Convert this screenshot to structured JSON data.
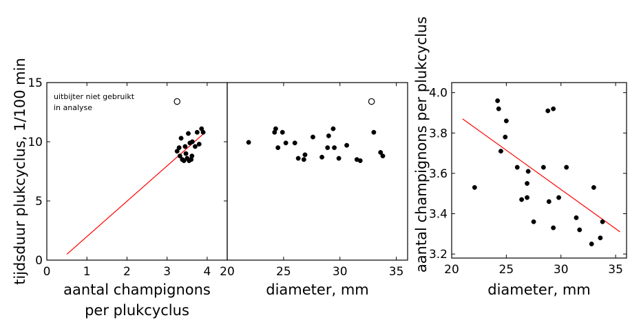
{
  "chart_data": [
    {
      "type": "scatter",
      "xlabel": "aantal champignons per plukcyclus",
      "xlabel_lines": [
        "aantal champignons",
        "per plukcyclus"
      ],
      "ylabel": "tijdsduur plukcyclus, 1/100 min",
      "xlim": [
        0,
        4.5
      ],
      "ylim": [
        0,
        15
      ],
      "xticks": [
        0,
        1,
        2,
        3,
        4
      ],
      "yticks": [
        0,
        5,
        10,
        15
      ],
      "annotation": [
        "uitbijter niet gebruikt",
        "in analyse"
      ],
      "series": [
        {
          "marker": "filled-circle",
          "points": [
            [
              3.25,
              9.2
            ],
            [
              3.3,
              9.5
            ],
            [
              3.32,
              8.8
            ],
            [
              3.35,
              10.3
            ],
            [
              3.38,
              8.5
            ],
            [
              3.42,
              8.4
            ],
            [
              3.45,
              9.6
            ],
            [
              3.47,
              9.0
            ],
            [
              3.5,
              8.6
            ],
            [
              3.53,
              10.7
            ],
            [
              3.55,
              8.4
            ],
            [
              3.57,
              9.9
            ],
            [
              3.6,
              8.5
            ],
            [
              3.62,
              8.8
            ],
            [
              3.63,
              10.0
            ],
            [
              3.7,
              9.6
            ],
            [
              3.75,
              10.8
            ],
            [
              3.8,
              9.8
            ],
            [
              3.86,
              11.1
            ],
            [
              3.9,
              10.8
            ]
          ]
        },
        {
          "marker": "open-circle",
          "points": [
            [
              3.25,
              13.4
            ]
          ]
        }
      ],
      "regression_line": [
        [
          0.5,
          0.5
        ],
        [
          3.95,
          10.8
        ]
      ],
      "colors": {
        "points": "#000000",
        "line": "#ff0000"
      }
    },
    {
      "type": "scatter",
      "xlabel": "diameter, mm",
      "ylabel": "",
      "xlim": [
        20,
        36
      ],
      "ylim": [
        0,
        15
      ],
      "xticks": [
        20,
        25,
        30,
        35
      ],
      "yticks": [],
      "series": [
        {
          "marker": "filled-circle",
          "points": [
            [
              21.9,
              9.95
            ],
            [
              24.2,
              10.8
            ],
            [
              24.3,
              11.1
            ],
            [
              24.5,
              9.5
            ],
            [
              24.9,
              10.8
            ],
            [
              25.2,
              9.9
            ],
            [
              26.0,
              9.9
            ],
            [
              26.3,
              8.6
            ],
            [
              26.8,
              8.5
            ],
            [
              26.9,
              8.9
            ],
            [
              27.6,
              10.4
            ],
            [
              28.4,
              8.7
            ],
            [
              28.9,
              9.5
            ],
            [
              29.0,
              10.5
            ],
            [
              29.4,
              11.1
            ],
            [
              29.5,
              9.5
            ],
            [
              29.9,
              8.6
            ],
            [
              30.6,
              9.7
            ],
            [
              31.5,
              8.5
            ],
            [
              31.8,
              8.4
            ],
            [
              33.0,
              10.8
            ],
            [
              33.6,
              9.1
            ],
            [
              33.8,
              8.8
            ]
          ]
        },
        {
          "marker": "open-circle",
          "points": [
            [
              32.8,
              13.4
            ]
          ]
        }
      ],
      "colors": {
        "points": "#000000"
      }
    },
    {
      "type": "scatter",
      "xlabel": "diameter, mm",
      "ylabel": "aantal champignons per plukcyclus",
      "xlim": [
        20,
        36
      ],
      "ylim": [
        3.18,
        4.05
      ],
      "xticks": [
        20,
        25,
        30,
        35
      ],
      "yticks": [
        "3.2",
        "3.4",
        "3.6",
        "3.8",
        "4.0"
      ],
      "series": [
        {
          "marker": "filled-circle",
          "points": [
            [
              22.1,
              3.53
            ],
            [
              24.2,
              3.96
            ],
            [
              24.3,
              3.92
            ],
            [
              24.5,
              3.71
            ],
            [
              24.9,
              3.78
            ],
            [
              25.0,
              3.86
            ],
            [
              26.0,
              3.63
            ],
            [
              26.4,
              3.47
            ],
            [
              26.9,
              3.55
            ],
            [
              26.9,
              3.48
            ],
            [
              27.0,
              3.61
            ],
            [
              27.5,
              3.36
            ],
            [
              28.4,
              3.63
            ],
            [
              28.8,
              3.91
            ],
            [
              28.9,
              3.46
            ],
            [
              29.3,
              3.92
            ],
            [
              29.3,
              3.33
            ],
            [
              29.8,
              3.48
            ],
            [
              30.5,
              3.63
            ],
            [
              31.4,
              3.38
            ],
            [
              31.7,
              3.32
            ],
            [
              32.8,
              3.25
            ],
            [
              33.0,
              3.53
            ],
            [
              33.6,
              3.28
            ],
            [
              33.8,
              3.36
            ]
          ]
        }
      ],
      "regression_line": [
        [
          21.0,
          3.87
        ],
        [
          35.4,
          3.31
        ]
      ],
      "colors": {
        "points": "#000000",
        "line": "#ff0000"
      }
    }
  ]
}
